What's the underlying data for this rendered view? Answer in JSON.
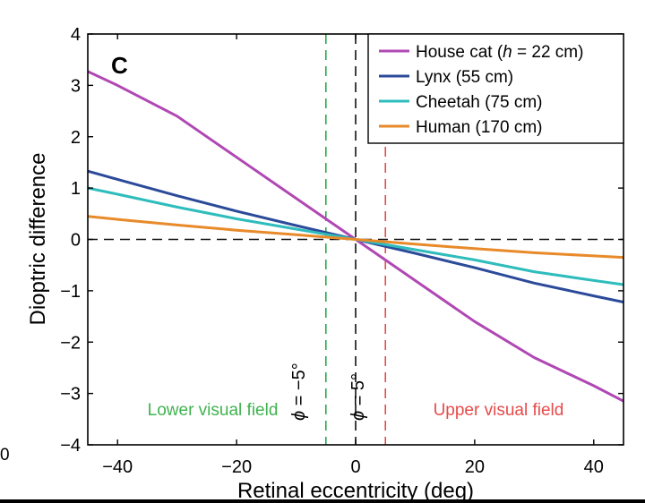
{
  "chart_data": {
    "type": "line",
    "panel_label": "C",
    "xlabel": "Retinal eccentricity (deg)",
    "ylabel": "Dioptric difference",
    "xlim": [
      -45,
      45
    ],
    "ylim": [
      -4,
      4
    ],
    "xticks": [
      -40,
      -20,
      0,
      20,
      40
    ],
    "xtick_labels": [
      "−40",
      "−20",
      "0",
      "20",
      "40"
    ],
    "yticks": [
      -4,
      -3,
      -2,
      -1,
      0,
      1,
      2,
      3,
      4
    ],
    "ytick_labels": [
      "−4",
      "−3",
      "−2",
      "−1",
      "0",
      "1",
      "2",
      "3",
      "4"
    ],
    "legend_position": "top-right",
    "series": [
      {
        "name": "House cat (h = 22 cm)",
        "legend_prefix": "House cat (",
        "legend_italic": "h",
        "legend_suffix": " = 22 cm)",
        "color": "#b048b4",
        "x": [
          -45,
          -40,
          -30,
          -20,
          -10,
          0,
          10,
          20,
          30,
          40,
          45
        ],
        "y": [
          3.27,
          3.0,
          2.4,
          1.6,
          0.8,
          0.0,
          -0.8,
          -1.6,
          -2.3,
          -2.85,
          -3.15
        ]
      },
      {
        "name": "Lynx (55 cm)",
        "legend_prefix": "Lynx (55 cm)",
        "color": "#2b4a9a",
        "x": [
          -45,
          -40,
          -30,
          -20,
          -10,
          0,
          10,
          20,
          30,
          40,
          45
        ],
        "y": [
          1.33,
          1.17,
          0.85,
          0.55,
          0.27,
          0.0,
          -0.27,
          -0.55,
          -0.85,
          -1.1,
          -1.22
        ]
      },
      {
        "name": "Cheetah (75 cm)",
        "legend_prefix": "Cheetah (75 cm)",
        "color": "#2ebcbc",
        "x": [
          -45,
          -40,
          -30,
          -20,
          -10,
          0,
          10,
          20,
          30,
          40,
          45
        ],
        "y": [
          1.0,
          0.88,
          0.63,
          0.4,
          0.2,
          0.0,
          -0.2,
          -0.4,
          -0.63,
          -0.8,
          -0.88
        ]
      },
      {
        "name": "Human (170 cm)",
        "legend_prefix": "Human (170 cm)",
        "color": "#e88a2a",
        "x": [
          -45,
          -40,
          -30,
          -20,
          -10,
          0,
          10,
          20,
          30,
          40,
          45
        ],
        "y": [
          0.45,
          0.39,
          0.28,
          0.18,
          0.09,
          0.0,
          -0.09,
          -0.18,
          -0.26,
          -0.32,
          -0.35
        ]
      }
    ],
    "reference_lines": [
      {
        "x": -5,
        "color": "#2aa84a",
        "style": "dashed",
        "label_phi": "ϕ",
        "label_value": " = −5°"
      },
      {
        "x": 0,
        "color": "#111111",
        "style": "dashed"
      },
      {
        "x": 5,
        "color": "#e84a4a",
        "style": "dashed",
        "label_phi": "ϕ",
        "label_value": " = 5°"
      }
    ],
    "hline_y": 0,
    "annotations": [
      {
        "text": "Lower visual field",
        "color": "#3fb34f",
        "x": -24,
        "y": -3.3
      },
      {
        "text": "Upper visual field",
        "color": "#e84a4a",
        "x": 24,
        "y": -3.3
      }
    ]
  },
  "stray_tick_label": "0"
}
